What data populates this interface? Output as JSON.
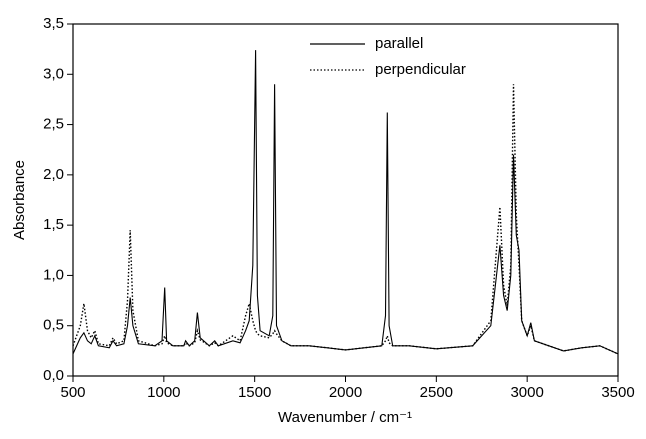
{
  "chart_data": {
    "type": "line",
    "xlabel": "Wavenumber / cm⁻¹",
    "ylabel": "Absorbance",
    "x": [
      500,
      540,
      560,
      580,
      600,
      620,
      640,
      700,
      720,
      740,
      780,
      800,
      815,
      830,
      860,
      950,
      990,
      1005,
      1015,
      1050,
      1110,
      1120,
      1140,
      1170,
      1185,
      1200,
      1250,
      1280,
      1300,
      1380,
      1420,
      1450,
      1470,
      1490,
      1505,
      1515,
      1530,
      1580,
      1600,
      1610,
      1620,
      1650,
      1700,
      1800,
      1900,
      2000,
      2200,
      2220,
      2230,
      2240,
      2260,
      2350,
      2500,
      2700,
      2800,
      2850,
      2870,
      2890,
      2910,
      2925,
      2940,
      2955,
      2970,
      3000,
      3020,
      3040,
      3200,
      3300,
      3400,
      3500
    ],
    "series": [
      {
        "name": "parallel",
        "color": "#000000",
        "style": "solid",
        "values": [
          0.22,
          0.38,
          0.43,
          0.35,
          0.32,
          0.4,
          0.3,
          0.28,
          0.35,
          0.3,
          0.32,
          0.5,
          0.78,
          0.5,
          0.32,
          0.3,
          0.35,
          0.88,
          0.35,
          0.3,
          0.3,
          0.35,
          0.3,
          0.35,
          0.63,
          0.38,
          0.3,
          0.35,
          0.3,
          0.35,
          0.33,
          0.45,
          0.55,
          1.1,
          3.24,
          0.8,
          0.45,
          0.4,
          0.6,
          2.9,
          0.5,
          0.35,
          0.3,
          0.3,
          0.28,
          0.26,
          0.3,
          0.6,
          2.62,
          0.5,
          0.3,
          0.3,
          0.27,
          0.3,
          0.5,
          1.3,
          0.8,
          0.65,
          1.0,
          2.2,
          1.4,
          1.25,
          0.55,
          0.4,
          0.53,
          0.35,
          0.25,
          0.28,
          0.3,
          0.22
        ]
      },
      {
        "name": "perpendicular",
        "color": "#000000",
        "style": "dotted",
        "values": [
          0.3,
          0.5,
          0.72,
          0.45,
          0.38,
          0.45,
          0.32,
          0.3,
          0.38,
          0.32,
          0.35,
          0.75,
          1.45,
          0.65,
          0.35,
          0.3,
          0.32,
          0.4,
          0.33,
          0.3,
          0.3,
          0.33,
          0.3,
          0.33,
          0.45,
          0.36,
          0.3,
          0.33,
          0.3,
          0.4,
          0.35,
          0.6,
          0.72,
          0.55,
          0.45,
          0.42,
          0.4,
          0.38,
          0.42,
          0.45,
          0.42,
          0.35,
          0.3,
          0.3,
          0.28,
          0.26,
          0.3,
          0.35,
          0.4,
          0.33,
          0.3,
          0.3,
          0.27,
          0.3,
          0.55,
          1.68,
          0.9,
          0.7,
          1.1,
          2.9,
          1.6,
          1.1,
          0.55,
          0.4,
          0.5,
          0.35,
          0.25,
          0.28,
          0.3,
          0.22
        ]
      }
    ],
    "xlim": [
      500,
      3500
    ],
    "xticks": [
      500,
      1000,
      1500,
      2000,
      2500,
      3000,
      3500
    ],
    "ylim": [
      0,
      3.5
    ],
    "yticks": [
      {
        "value": 0,
        "label": "0,0"
      },
      {
        "value": 0.5,
        "label": "0,5"
      },
      {
        "value": 1,
        "label": "1,0"
      },
      {
        "value": 1.5,
        "label": "1,5"
      },
      {
        "value": 2,
        "label": "2,0"
      },
      {
        "value": 2.5,
        "label": "2,5"
      },
      {
        "value": 3,
        "label": "3,0"
      },
      {
        "value": 3.5,
        "label": "3,5"
      }
    ],
    "legend": "top"
  }
}
